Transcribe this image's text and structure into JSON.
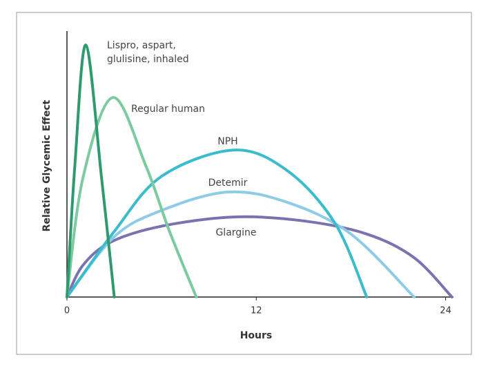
{
  "chart_data": {
    "type": "line",
    "xlabel": "Hours",
    "ylabel": "Relative Glycemic Effect",
    "xlim": [
      0,
      24.5
    ],
    "xticks": [
      0,
      12,
      24
    ],
    "ylim": [
      0,
      100
    ],
    "series": [
      {
        "name": "Lispro, aspart, glulisine, inhaled",
        "color": "#2e9a6e",
        "x": [
          0,
          0.5,
          1.2,
          2.2,
          3.0
        ],
        "values": [
          0,
          50,
          96,
          45,
          0
        ]
      },
      {
        "name": "Regular human",
        "color": "#7ccaa0",
        "x": [
          0,
          1,
          2.9,
          5,
          6.5,
          8.2
        ],
        "values": [
          0,
          45,
          76,
          50,
          25,
          0
        ]
      },
      {
        "name": "NPH",
        "color": "#3bbccc",
        "x": [
          0,
          3,
          6,
          10.6,
          14,
          17,
          19
        ],
        "values": [
          0,
          25,
          46,
          56,
          48,
          28,
          0
        ]
      },
      {
        "name": "Detemir",
        "color": "#8ecbe6",
        "x": [
          0,
          3,
          6,
          10.2,
          14,
          18,
          22
        ],
        "values": [
          0,
          23,
          33,
          40,
          36,
          24,
          0
        ]
      },
      {
        "name": "Glargine",
        "color": "#7a73b0",
        "x": [
          0,
          1,
          2.8,
          6,
          10.6,
          15,
          19,
          22,
          24.4
        ],
        "values": [
          0,
          12,
          21,
          27,
          30.5,
          29,
          24,
          15,
          0
        ]
      }
    ]
  }
}
